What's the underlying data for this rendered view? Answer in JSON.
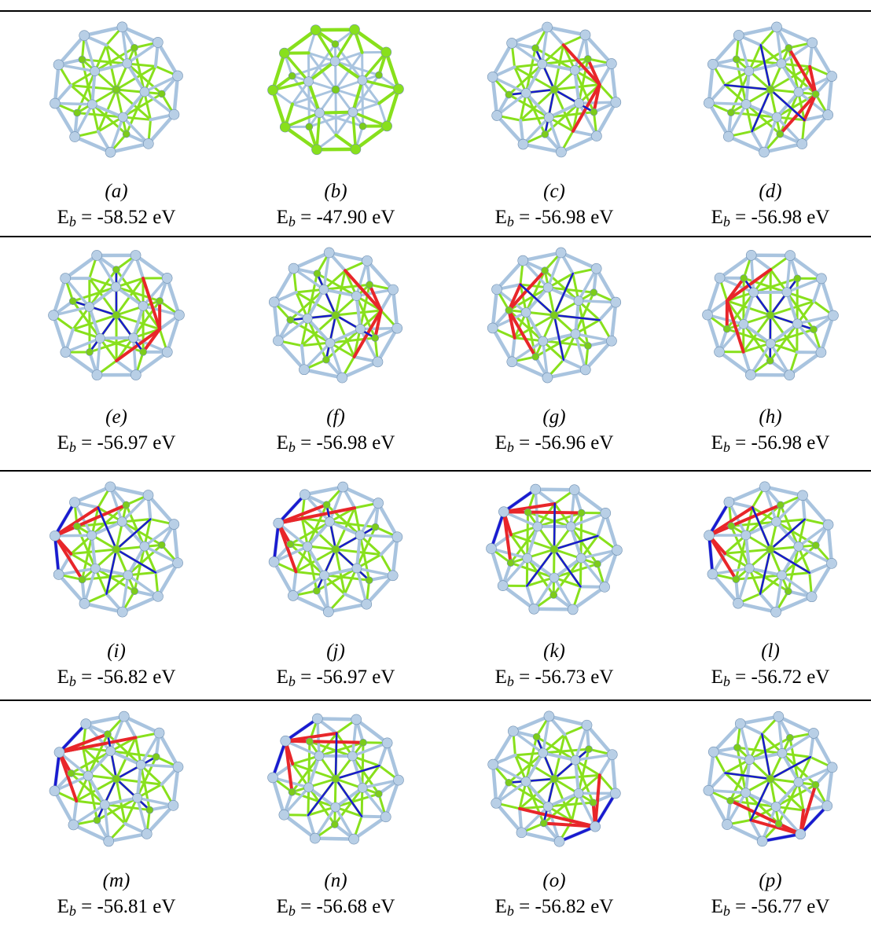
{
  "panels": [
    {
      "label": "(a)",
      "energy": {
        "symbol": "E",
        "subscript": "b",
        "value": " = -58.52 eV"
      }
    },
    {
      "label": "(b)",
      "energy": {
        "symbol": "E",
        "subscript": "b",
        "value": " = -47.90 eV"
      }
    },
    {
      "label": "(c)",
      "energy": {
        "symbol": "E",
        "subscript": "b",
        "value": " = -56.98 eV"
      }
    },
    {
      "label": "(d)",
      "energy": {
        "symbol": "E",
        "subscript": "b",
        "value": " = -56.98 eV"
      }
    },
    {
      "label": "(e)",
      "energy": {
        "symbol": "E",
        "subscript": "b",
        "value": " = -56.97 eV"
      }
    },
    {
      "label": "(f)",
      "energy": {
        "symbol": "E",
        "subscript": "b",
        "value": " = -56.98 eV"
      }
    },
    {
      "label": "(g)",
      "energy": {
        "symbol": "E",
        "subscript": "b",
        "value": " = -56.96 eV"
      }
    },
    {
      "label": "(h)",
      "energy": {
        "symbol": "E",
        "subscript": "b",
        "value": " = -56.98 eV"
      }
    },
    {
      "label": "(i)",
      "energy": {
        "symbol": "E",
        "subscript": "b",
        "value": " = -56.82 eV"
      }
    },
    {
      "label": "(j)",
      "energy": {
        "symbol": "E",
        "subscript": "b",
        "value": " = -56.97 eV"
      }
    },
    {
      "label": "(k)",
      "energy": {
        "symbol": "E",
        "subscript": "b",
        "value": " = -56.73 eV"
      }
    },
    {
      "label": "(l)",
      "energy": {
        "symbol": "E",
        "subscript": "b",
        "value": " = -56.72 eV"
      }
    },
    {
      "label": "(m)",
      "energy": {
        "symbol": "E",
        "subscript": "b",
        "value": " = -56.81 eV"
      }
    },
    {
      "label": "(n)",
      "energy": {
        "symbol": "E",
        "subscript": "b",
        "value": " = -56.68 eV"
      }
    },
    {
      "label": "(o)",
      "energy": {
        "symbol": "E",
        "subscript": "b",
        "value": " = -56.82 eV"
      }
    },
    {
      "label": "(p)",
      "energy": {
        "symbol": "E",
        "subscript": "b",
        "value": " = -56.77 eV"
      }
    }
  ]
}
